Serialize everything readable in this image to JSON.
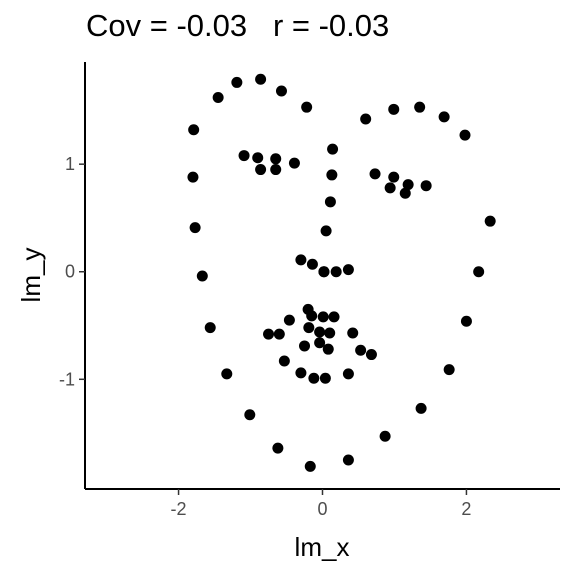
{
  "chart_data": {
    "type": "scatter",
    "title": "Cov = -0.03   r = -0.03",
    "xlabel": "lm_x",
    "ylabel": "lm_y",
    "xlim": [
      -3.3,
      3.3
    ],
    "ylim": [
      -2.02,
      1.95
    ],
    "xticks": [
      -2,
      0,
      2
    ],
    "xtick_labels": [
      "-2",
      "0",
      "2"
    ],
    "yticks": [
      -1,
      0,
      1
    ],
    "ytick_labels": [
      "-1",
      "0",
      "1"
    ],
    "grid": false,
    "point_color": "#000000",
    "x": [
      -1.79,
      -1.8,
      -1.77,
      -1.67,
      -1.56,
      -1.33,
      -1.01,
      -0.62,
      -0.17,
      0.36,
      0.87,
      1.37,
      1.76,
      2.0,
      2.17,
      2.33,
      1.98,
      1.69,
      1.35,
      0.99,
      0.6,
      -0.22,
      -0.57,
      -0.86,
      -1.19,
      -1.45,
      -1.09,
      -0.9,
      -0.65,
      -0.39,
      -0.65,
      -0.86,
      0.14,
      0.99,
      1.19,
      1.44,
      0.73,
      0.94,
      1.15,
      0.13,
      0.11,
      0.05,
      0.02,
      -0.3,
      -0.14,
      0.02,
      0.19,
      0.36,
      -0.2,
      -0.46,
      -0.6,
      -0.75,
      -0.15,
      0.01,
      0.16,
      -0.19,
      -0.04,
      0.1,
      -0.25,
      -0.04,
      0.08,
      0.42,
      0.53,
      0.68,
      -0.53,
      -0.3,
      -0.12,
      0.04,
      0.36
    ],
    "y": [
      1.32,
      0.88,
      0.41,
      -0.04,
      -0.52,
      -0.95,
      -1.33,
      -1.64,
      -1.81,
      -1.75,
      -1.53,
      -1.27,
      -0.91,
      -0.46,
      0.0,
      0.47,
      1.27,
      1.44,
      1.53,
      1.51,
      1.42,
      1.53,
      1.68,
      1.79,
      1.76,
      1.62,
      1.08,
      1.06,
      1.05,
      1.01,
      0.95,
      0.95,
      1.14,
      0.88,
      0.81,
      0.8,
      0.91,
      0.78,
      0.73,
      0.9,
      0.65,
      0.38,
      0.0,
      0.11,
      0.07,
      0.0,
      0.0,
      0.02,
      -0.35,
      -0.45,
      -0.58,
      -0.58,
      -0.41,
      -0.42,
      -0.42,
      -0.52,
      -0.56,
      -0.57,
      -0.69,
      -0.66,
      -0.72,
      -0.57,
      -0.73,
      -0.77,
      -0.83,
      -0.94,
      -0.99,
      -0.99,
      -0.95
    ]
  }
}
